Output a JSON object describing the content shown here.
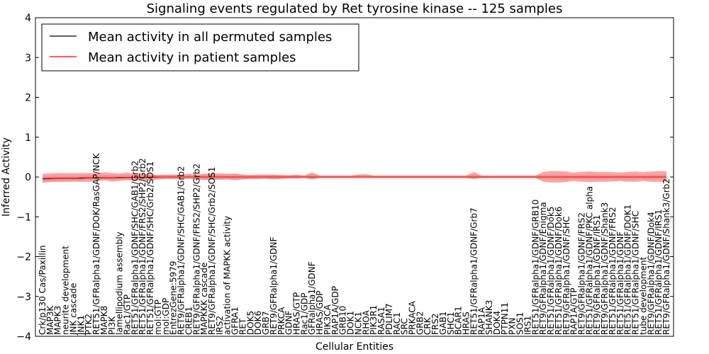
{
  "chart_data": {
    "type": "line",
    "title": "Signaling events regulated by Ret tyrosine kinase -- 125 samples",
    "xlabel": "Cellular Entities",
    "ylabel": "Inferred Activity",
    "ylim": [
      -4,
      4
    ],
    "yticks": [
      "−4",
      "−3",
      "−2",
      "−1",
      "0",
      "1",
      "2",
      "3",
      "4"
    ],
    "legend_placement": "top-left",
    "grid": false,
    "categories": [
      "Crk/p130 Cas/Paxillin",
      "MAP3K",
      "MAPK3",
      "neurite development",
      "JNK cascade",
      "JNK1",
      "PTK2",
      "RET51/GFRalpha1/GDNF/DOK/RasGAP/NCK",
      "MAPK8",
      "PI3K",
      "lamellipodium assembly",
      "Rac1/GTP",
      "RET51/GFRalpha1/GDNF/SHC/GAB1/Grb2",
      "RET51/GFRalpha1/GDNF/FRS2/SHP2/Grb2",
      "RET51/GFRalpha1/GDNF/SHC/Grb2/SOS1",
      "mol:GTP",
      "mol:GDP",
      "EntrezGene:5979",
      "RET9/GFRalpha1/GDNF/SHC/GAB1/Grb2",
      "CREB1",
      "RET9/GFRalpha1/GDNF/FRS2/SHP2/Grb2",
      "MAPKKK cascade",
      "RET9/GFRalpha1/GDNF/SHC/Grb2/SOS1",
      "IRS2",
      "activation of MAPKK activity",
      "GFRA1",
      "RET",
      "DOK5",
      "DOK6",
      "GRB7",
      "RET9/GFRalpha1/GDNF",
      "PRKCA",
      "GDNF",
      "HRAS/GTP",
      "Rac1/GDP",
      "GFRalpha1/GDNF",
      "HRAS/GDP",
      "PIK3CA",
      "RAP1A/GDP",
      "GRB10",
      "DOK1",
      "NCK1",
      "RHOA",
      "PIK3R1",
      "RASA1",
      "PDLIM7",
      "RAC1",
      "SRC",
      "PRKACA",
      "GRB2",
      "CRK",
      "FRS2",
      "GAB1",
      "SHC1",
      "BCAR1",
      "HRAS",
      "RET51/GFRalpha1/GDNF/Grb7",
      "RAP1A",
      "SHANK3",
      "DOK4",
      "PTPN11",
      "PXN",
      "SOS1",
      "IRS1",
      "RET51/GFRalpha1/GDNF/GRB10",
      "RET9/GFRalpha1/GDNF/Enigma",
      "RET51/GFRalpha1/GDNF/Dok5",
      "RET51/GFRalpha1/GDNF/Dok6",
      "RET9/GFRalpha1/GDNF/SHC",
      "RAP1A/GTP",
      "RET9/GFRalpha1/GDNF/FRS2",
      "RET51/GFRalpha1/GDNF/PKC alpha",
      "RET9/GFRalpha1/GDNF/IRS1",
      "RET9/GFRalpha1/GDNF/Shank3",
      "RET51/GFRalpha1/GDNF/FRS2",
      "RET51/GFRalpha1/GDNF",
      "RET51/GFRalpha1/GDNF/DOK1",
      "RET51/GFRalpha1/GDNF/SHC",
      "tube development",
      "RET9/GFRalpha1/GDNF/Dok4",
      "RET51/GFRalpha1/GDNF/IRS1",
      "RET9/GFRalpha1/GDNF/Shank3/Grb2"
    ],
    "series": [
      {
        "name": "Mean activity in all permuted samples",
        "color": "#000000",
        "values": [
          -0.05,
          -0.04,
          -0.03,
          -0.03,
          -0.03,
          -0.03,
          -0.02,
          -0.02,
          -0.02,
          -0.02,
          -0.01,
          -0.01,
          -0.01,
          -0.01,
          -0.01,
          0,
          0,
          0,
          0,
          0,
          0,
          0,
          0,
          0,
          0,
          0,
          0,
          0,
          0,
          0,
          0,
          0,
          0,
          0,
          0,
          0,
          0,
          0,
          0,
          0,
          0,
          0,
          0,
          0,
          0,
          0,
          0,
          0,
          0,
          0,
          0,
          0,
          0,
          0,
          0,
          0,
          0,
          0,
          0,
          0,
          0,
          0,
          0,
          0,
          0,
          0,
          0,
          0,
          0,
          0,
          0,
          0,
          0,
          0,
          0,
          0,
          0,
          0,
          0,
          0,
          0,
          0
        ],
        "band_low": [
          -0.12,
          -0.11,
          -0.1,
          -0.1,
          -0.09,
          -0.09,
          -0.08,
          -0.08,
          -0.08,
          -0.07,
          -0.07,
          -0.07,
          -0.06,
          -0.06,
          -0.06,
          -0.06,
          -0.06,
          -0.06,
          -0.06,
          -0.06,
          -0.06,
          -0.06,
          -0.06,
          -0.06,
          -0.06,
          -0.06,
          -0.06,
          -0.06,
          -0.06,
          -0.06,
          -0.06,
          -0.06,
          -0.06,
          -0.06,
          -0.06,
          -0.06,
          -0.06,
          -0.06,
          -0.06,
          -0.06,
          -0.06,
          -0.06,
          -0.06,
          -0.06,
          -0.06,
          -0.06,
          -0.06,
          -0.06,
          -0.06,
          -0.06,
          -0.06,
          -0.06,
          -0.06,
          -0.06,
          -0.06,
          -0.06,
          -0.06,
          -0.06,
          -0.06,
          -0.06,
          -0.06,
          -0.06,
          -0.06,
          -0.06,
          -0.06,
          -0.06,
          -0.06,
          -0.06,
          -0.06,
          -0.06,
          -0.06,
          -0.06,
          -0.06,
          -0.06,
          -0.06,
          -0.06,
          -0.06,
          -0.06,
          -0.06,
          -0.06,
          -0.06,
          -0.06
        ],
        "band_high": [
          0.02,
          0.03,
          0.04,
          0.04,
          0.04,
          0.04,
          0.05,
          0.05,
          0.05,
          0.05,
          0.05,
          0.05,
          0.05,
          0.05,
          0.06,
          0.06,
          0.06,
          0.06,
          0.06,
          0.06,
          0.06,
          0.06,
          0.06,
          0.06,
          0.06,
          0.06,
          0.06,
          0.06,
          0.06,
          0.06,
          0.06,
          0.06,
          0.06,
          0.06,
          0.06,
          0.06,
          0.06,
          0.06,
          0.06,
          0.06,
          0.06,
          0.06,
          0.06,
          0.06,
          0.06,
          0.06,
          0.06,
          0.06,
          0.06,
          0.06,
          0.06,
          0.06,
          0.06,
          0.06,
          0.06,
          0.06,
          0.06,
          0.06,
          0.06,
          0.06,
          0.06,
          0.06,
          0.06,
          0.06,
          0.06,
          0.06,
          0.06,
          0.06,
          0.06,
          0.06,
          0.06,
          0.06,
          0.06,
          0.06,
          0.06,
          0.06,
          0.06,
          0.06,
          0.06,
          0.06,
          0.06,
          0.06
        ]
      },
      {
        "name": "Mean activity in patient samples",
        "color": "#ff0000",
        "values": [
          -0.04,
          -0.03,
          -0.03,
          -0.03,
          -0.03,
          -0.02,
          -0.02,
          -0.02,
          -0.02,
          -0.02,
          -0.02,
          -0.01,
          -0.01,
          -0.01,
          0,
          0,
          0,
          0,
          0,
          0,
          0,
          0,
          0,
          0,
          0,
          0,
          0,
          0,
          0,
          0,
          0,
          0,
          0,
          0,
          0,
          0,
          0,
          0,
          0,
          0,
          0,
          0,
          0,
          0,
          0,
          0,
          0,
          0,
          0,
          0,
          0,
          0,
          0,
          0,
          0,
          0,
          0,
          0,
          0,
          0,
          0,
          0,
          0,
          0,
          0,
          0,
          0,
          0,
          0,
          0,
          0,
          0,
          0,
          0,
          0,
          0,
          0,
          0,
          0,
          0,
          0,
          0
        ],
        "band_low": [
          -0.14,
          -0.13,
          -0.12,
          -0.12,
          -0.12,
          -0.12,
          -0.12,
          -0.1,
          -0.08,
          -0.12,
          -0.1,
          -0.08,
          -0.09,
          -0.09,
          -0.08,
          -0.06,
          -0.05,
          -0.05,
          -0.06,
          -0.04,
          -0.06,
          -0.08,
          -0.07,
          -0.07,
          -0.06,
          -0.08,
          -0.06,
          -0.05,
          -0.05,
          -0.04,
          -0.06,
          -0.05,
          -0.03,
          -0.03,
          -0.02,
          -0.06,
          -0.02,
          -0.02,
          -0.02,
          -0.02,
          -0.02,
          -0.02,
          -0.02,
          -0.02,
          -0.02,
          -0.02,
          -0.02,
          -0.02,
          -0.02,
          -0.02,
          -0.02,
          -0.02,
          -0.02,
          -0.02,
          -0.02,
          -0.02,
          -0.05,
          -0.02,
          -0.02,
          -0.02,
          -0.02,
          -0.02,
          -0.02,
          -0.02,
          -0.02,
          -0.12,
          -0.14,
          -0.14,
          -0.13,
          -0.1,
          -0.12,
          -0.13,
          -0.12,
          -0.12,
          -0.11,
          -0.1,
          -0.12,
          -0.12,
          -0.1,
          -0.12,
          -0.12,
          -0.12
        ],
        "band_high": [
          0.08,
          0.09,
          0.1,
          0.1,
          0.1,
          0.1,
          0.1,
          0.09,
          0.12,
          0.1,
          0.09,
          0.11,
          0.08,
          0.08,
          0.07,
          0.05,
          0.06,
          0.06,
          0.06,
          0.08,
          0.06,
          0.08,
          0.09,
          0.09,
          0.08,
          0.09,
          0.06,
          0.05,
          0.06,
          0.06,
          0.06,
          0.05,
          0.04,
          0.06,
          0.03,
          0.12,
          0.03,
          0.03,
          0.03,
          0.03,
          0.03,
          0.06,
          0.07,
          0.03,
          0.03,
          0.03,
          0.03,
          0.03,
          0.03,
          0.03,
          0.03,
          0.03,
          0.03,
          0.03,
          0.03,
          0.03,
          0.13,
          0.03,
          0.03,
          0.03,
          0.03,
          0.03,
          0.03,
          0.03,
          0.03,
          0.13,
          0.15,
          0.15,
          0.14,
          0.11,
          0.13,
          0.14,
          0.13,
          0.13,
          0.12,
          0.11,
          0.13,
          0.14,
          0.12,
          0.14,
          0.15,
          0.15
        ]
      }
    ]
  }
}
